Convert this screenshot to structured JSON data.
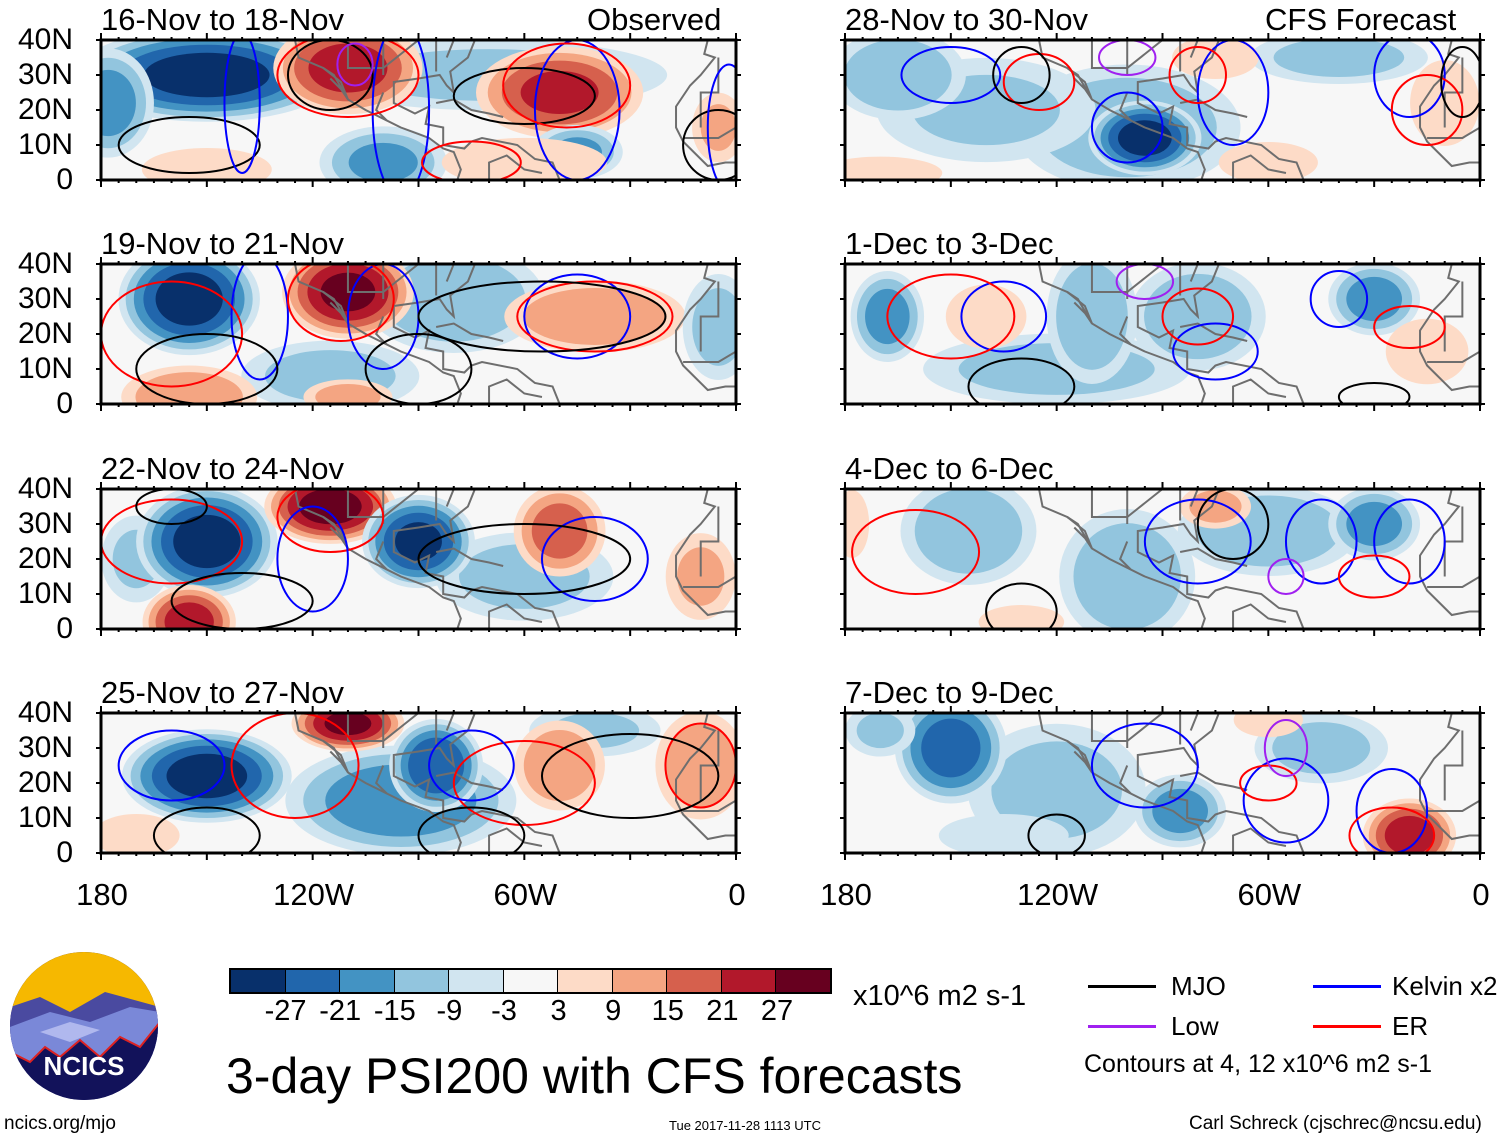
{
  "header": {
    "observed_label": "Observed",
    "forecast_label": "CFS Forecast"
  },
  "lat_labels": [
    "40N",
    "30N",
    "20N",
    "10N",
    "0"
  ],
  "lon_labels": [
    "180",
    "120W",
    "60W",
    "0"
  ],
  "colors": {
    "fill": [
      "#08306b",
      "#2166ac",
      "#4393c3",
      "#92c5de",
      "#d1e5f0",
      "#f7f7f7",
      "#fddbc7",
      "#f4a582",
      "#d6604d",
      "#b2182b",
      "#67001f"
    ],
    "MJO": "#000000",
    "Kelvin": "#0000ff",
    "Low": "#a020f0",
    "ER": "#ff0000",
    "land": "#6e6e6e"
  },
  "panels": [
    {
      "title": "16-Nov to 18-Nov",
      "blobs": [
        [
          -150,
          30,
          -30,
          28,
          10
        ],
        [
          -178,
          22,
          -18,
          10,
          12
        ],
        [
          -70,
          30,
          -12,
          40,
          8
        ],
        [
          -110,
          32,
          24,
          16,
          10
        ],
        [
          -50,
          25,
          22,
          18,
          10
        ],
        [
          -45,
          8,
          -16,
          10,
          6
        ],
        [
          -100,
          5,
          -16,
          14,
          8
        ],
        [
          -5,
          15,
          10,
          6,
          8
        ],
        [
          -150,
          3,
          9,
          15,
          5
        ],
        [
          -60,
          5,
          6,
          20,
          6
        ]
      ],
      "contours": [
        [
          "MJO",
          -115,
          30,
          12,
          10
        ],
        [
          "MJO",
          -155,
          10,
          20,
          8
        ],
        [
          "MJO",
          -60,
          24,
          20,
          8
        ],
        [
          "MJO",
          -5,
          10,
          10,
          10
        ],
        [
          "Kelvin",
          -140,
          22,
          5,
          20
        ],
        [
          "Kelvin",
          -95,
          20,
          8,
          25
        ],
        [
          "Kelvin",
          -45,
          20,
          12,
          20
        ],
        [
          "Kelvin",
          -2,
          15,
          6,
          18
        ],
        [
          "ER",
          -110,
          30,
          20,
          12
        ],
        [
          "ER",
          -48,
          27,
          18,
          12
        ],
        [
          "ER",
          -75,
          5,
          14,
          6
        ],
        [
          "Low",
          -108,
          33,
          5,
          6
        ]
      ]
    },
    {
      "title": "28-Nov to 30-Nov",
      "blobs": [
        [
          -100,
          15,
          -15,
          25,
          14
        ],
        [
          -140,
          20,
          -10,
          25,
          12
        ],
        [
          -165,
          30,
          -15,
          15,
          10
        ],
        [
          -95,
          12,
          -30,
          12,
          8
        ],
        [
          -40,
          35,
          -12,
          20,
          6
        ],
        [
          -75,
          35,
          9,
          10,
          5
        ],
        [
          -10,
          22,
          9,
          8,
          10
        ],
        [
          -170,
          2,
          6,
          15,
          4
        ],
        [
          -60,
          5,
          6,
          12,
          5
        ]
      ],
      "contours": [
        [
          "Kelvin",
          -150,
          30,
          14,
          8
        ],
        [
          "Kelvin",
          -100,
          15,
          10,
          10
        ],
        [
          "Kelvin",
          -70,
          25,
          10,
          15
        ],
        [
          "Kelvin",
          -20,
          30,
          10,
          12
        ],
        [
          "ER",
          -125,
          28,
          10,
          8
        ],
        [
          "ER",
          -80,
          30,
          8,
          8
        ],
        [
          "ER",
          -15,
          20,
          10,
          10
        ],
        [
          "MJO",
          -130,
          30,
          8,
          8
        ],
        [
          "MJO",
          -5,
          28,
          6,
          10
        ],
        [
          "Low",
          -100,
          35,
          8,
          5
        ]
      ]
    },
    {
      "title": "19-Nov to 21-Nov",
      "blobs": [
        [
          -80,
          30,
          -15,
          20,
          12
        ],
        [
          -115,
          8,
          -12,
          20,
          8
        ],
        [
          -155,
          30,
          -30,
          15,
          12
        ],
        [
          -110,
          32,
          28,
          14,
          10
        ],
        [
          -155,
          2,
          15,
          15,
          7
        ],
        [
          -40,
          25,
          15,
          20,
          8
        ],
        [
          -5,
          22,
          -12,
          8,
          12
        ],
        [
          -110,
          2,
          12,
          10,
          4
        ]
      ],
      "contours": [
        [
          "Kelvin",
          -135,
          25,
          8,
          18
        ],
        [
          "Kelvin",
          -100,
          25,
          10,
          15
        ],
        [
          "Kelvin",
          -45,
          25,
          15,
          12
        ],
        [
          "ER",
          -112,
          30,
          15,
          12
        ],
        [
          "ER",
          -160,
          20,
          20,
          15
        ],
        [
          "ER",
          -40,
          25,
          22,
          10
        ],
        [
          "MJO",
          -150,
          10,
          20,
          10
        ],
        [
          "MJO",
          -55,
          25,
          35,
          10
        ],
        [
          "MJO",
          -90,
          10,
          15,
          10
        ]
      ]
    },
    {
      "title": "1-Dec to 3-Dec",
      "blobs": [
        [
          -120,
          10,
          -12,
          30,
          8
        ],
        [
          -168,
          25,
          -18,
          8,
          10
        ],
        [
          -110,
          25,
          -15,
          10,
          15
        ],
        [
          -80,
          25,
          -15,
          15,
          12
        ],
        [
          -30,
          30,
          -18,
          10,
          8
        ],
        [
          -15,
          15,
          6,
          10,
          8
        ],
        [
          -140,
          25,
          5,
          10,
          8
        ]
      ],
      "contours": [
        [
          "Kelvin",
          -135,
          25,
          12,
          10
        ],
        [
          "Kelvin",
          -75,
          15,
          12,
          8
        ],
        [
          "Kelvin",
          -40,
          30,
          8,
          8
        ],
        [
          "ER",
          -150,
          25,
          18,
          12
        ],
        [
          "ER",
          -80,
          25,
          10,
          8
        ],
        [
          "ER",
          -20,
          22,
          10,
          6
        ],
        [
          "MJO",
          -130,
          5,
          15,
          8
        ],
        [
          "MJO",
          -30,
          2,
          10,
          4
        ],
        [
          "Low",
          -95,
          35,
          8,
          5
        ]
      ]
    },
    {
      "title": "22-Nov to 24-Nov",
      "blobs": [
        [
          -60,
          15,
          -12,
          20,
          10
        ],
        [
          -170,
          20,
          -10,
          8,
          10
        ],
        [
          -150,
          25,
          -30,
          15,
          12
        ],
        [
          -115,
          35,
          30,
          14,
          8
        ],
        [
          -90,
          25,
          -28,
          12,
          10
        ],
        [
          -155,
          2,
          24,
          10,
          8
        ],
        [
          -50,
          28,
          18,
          10,
          10
        ],
        [
          -10,
          15,
          10,
          8,
          10
        ]
      ],
      "contours": [
        [
          "ER",
          -115,
          32,
          15,
          10
        ],
        [
          "ER",
          -160,
          25,
          20,
          12
        ],
        [
          "Kelvin",
          -120,
          20,
          10,
          15
        ],
        [
          "Kelvin",
          -40,
          20,
          15,
          12
        ],
        [
          "MJO",
          -140,
          8,
          20,
          8
        ],
        [
          "MJO",
          -60,
          20,
          30,
          10
        ],
        [
          "MJO",
          -160,
          35,
          10,
          5
        ]
      ]
    },
    {
      "title": "4-Dec to 6-Dec",
      "blobs": [
        [
          -145,
          28,
          -15,
          15,
          12
        ],
        [
          -100,
          15,
          -15,
          15,
          15
        ],
        [
          -60,
          28,
          -15,
          20,
          10
        ],
        [
          -30,
          30,
          -18,
          10,
          8
        ],
        [
          -75,
          35,
          12,
          8,
          5
        ],
        [
          -178,
          30,
          8,
          4,
          8
        ],
        [
          -130,
          2,
          8,
          10,
          4
        ]
      ],
      "contours": [
        [
          "Kelvin",
          -80,
          25,
          15,
          12
        ],
        [
          "Kelvin",
          -45,
          25,
          10,
          12
        ],
        [
          "Kelvin",
          -20,
          25,
          10,
          12
        ],
        [
          "ER",
          -160,
          22,
          18,
          12
        ],
        [
          "ER",
          -30,
          15,
          10,
          6
        ],
        [
          "MJO",
          -130,
          5,
          10,
          8
        ],
        [
          "MJO",
          -70,
          30,
          10,
          10
        ],
        [
          "Low",
          -55,
          15,
          5,
          5
        ]
      ]
    },
    {
      "title": "25-Nov to 27-Nov",
      "blobs": [
        [
          -95,
          15,
          -20,
          25,
          12
        ],
        [
          -40,
          35,
          -10,
          15,
          6
        ],
        [
          -150,
          22,
          -30,
          18,
          10
        ],
        [
          -110,
          37,
          28,
          12,
          6
        ],
        [
          -85,
          25,
          -27,
          10,
          10
        ],
        [
          -50,
          25,
          15,
          10,
          10
        ],
        [
          -10,
          25,
          15,
          10,
          12
        ],
        [
          -170,
          5,
          9,
          10,
          5
        ]
      ],
      "contours": [
        [
          "ER",
          -125,
          25,
          18,
          15
        ],
        [
          "ER",
          -60,
          20,
          20,
          12
        ],
        [
          "ER",
          -10,
          25,
          10,
          12
        ],
        [
          "Kelvin",
          -160,
          25,
          15,
          10
        ],
        [
          "Kelvin",
          -75,
          25,
          12,
          10
        ],
        [
          "MJO",
          -150,
          5,
          15,
          8
        ],
        [
          "MJO",
          -75,
          5,
          15,
          8
        ],
        [
          "MJO",
          -30,
          22,
          25,
          12
        ]
      ]
    },
    {
      "title": "7-Dec to 9-Dec",
      "blobs": [
        [
          -120,
          18,
          -12,
          20,
          15
        ],
        [
          -150,
          30,
          -24,
          12,
          12
        ],
        [
          -85,
          12,
          -18,
          10,
          8
        ],
        [
          -45,
          30,
          -12,
          15,
          8
        ],
        [
          -170,
          35,
          -10,
          8,
          6
        ],
        [
          -135,
          5,
          -9,
          15,
          5
        ],
        [
          -20,
          5,
          24,
          10,
          8
        ],
        [
          -60,
          38,
          9,
          8,
          4
        ]
      ],
      "contours": [
        [
          "Kelvin",
          -95,
          25,
          15,
          12
        ],
        [
          "Kelvin",
          -55,
          15,
          12,
          12
        ],
        [
          "Kelvin",
          -25,
          12,
          10,
          12
        ],
        [
          "ER",
          -25,
          5,
          12,
          8
        ],
        [
          "ER",
          -60,
          20,
          8,
          5
        ],
        [
          "Low",
          -55,
          30,
          6,
          8
        ],
        [
          "MJO",
          -120,
          5,
          8,
          6
        ]
      ]
    }
  ],
  "colorbar": {
    "levels": [
      "-27",
      "-21",
      "-15",
      "-9",
      "-3",
      "3",
      "9",
      "15",
      "21",
      "27"
    ],
    "units": "x10^6 m2 s-1"
  },
  "legend": {
    "items": [
      {
        "key": "MJO",
        "label": "MJO"
      },
      {
        "key": "Kelvin",
        "label": "Kelvin x2"
      },
      {
        "key": "Low",
        "label": "Low"
      },
      {
        "key": "ER",
        "label": "ER"
      }
    ],
    "note": "Contours at 4, 12 x10^6 m2 s-1"
  },
  "logo": {
    "text": "NCICS"
  },
  "footer": {
    "title": "3-day PSI200 with CFS forecasts",
    "url": "ncics.org/mjo",
    "timestamp": "Tue 2017-11-28 1113 UTC",
    "author": "Carl Schreck (cjschrec@ncsu.edu)"
  }
}
